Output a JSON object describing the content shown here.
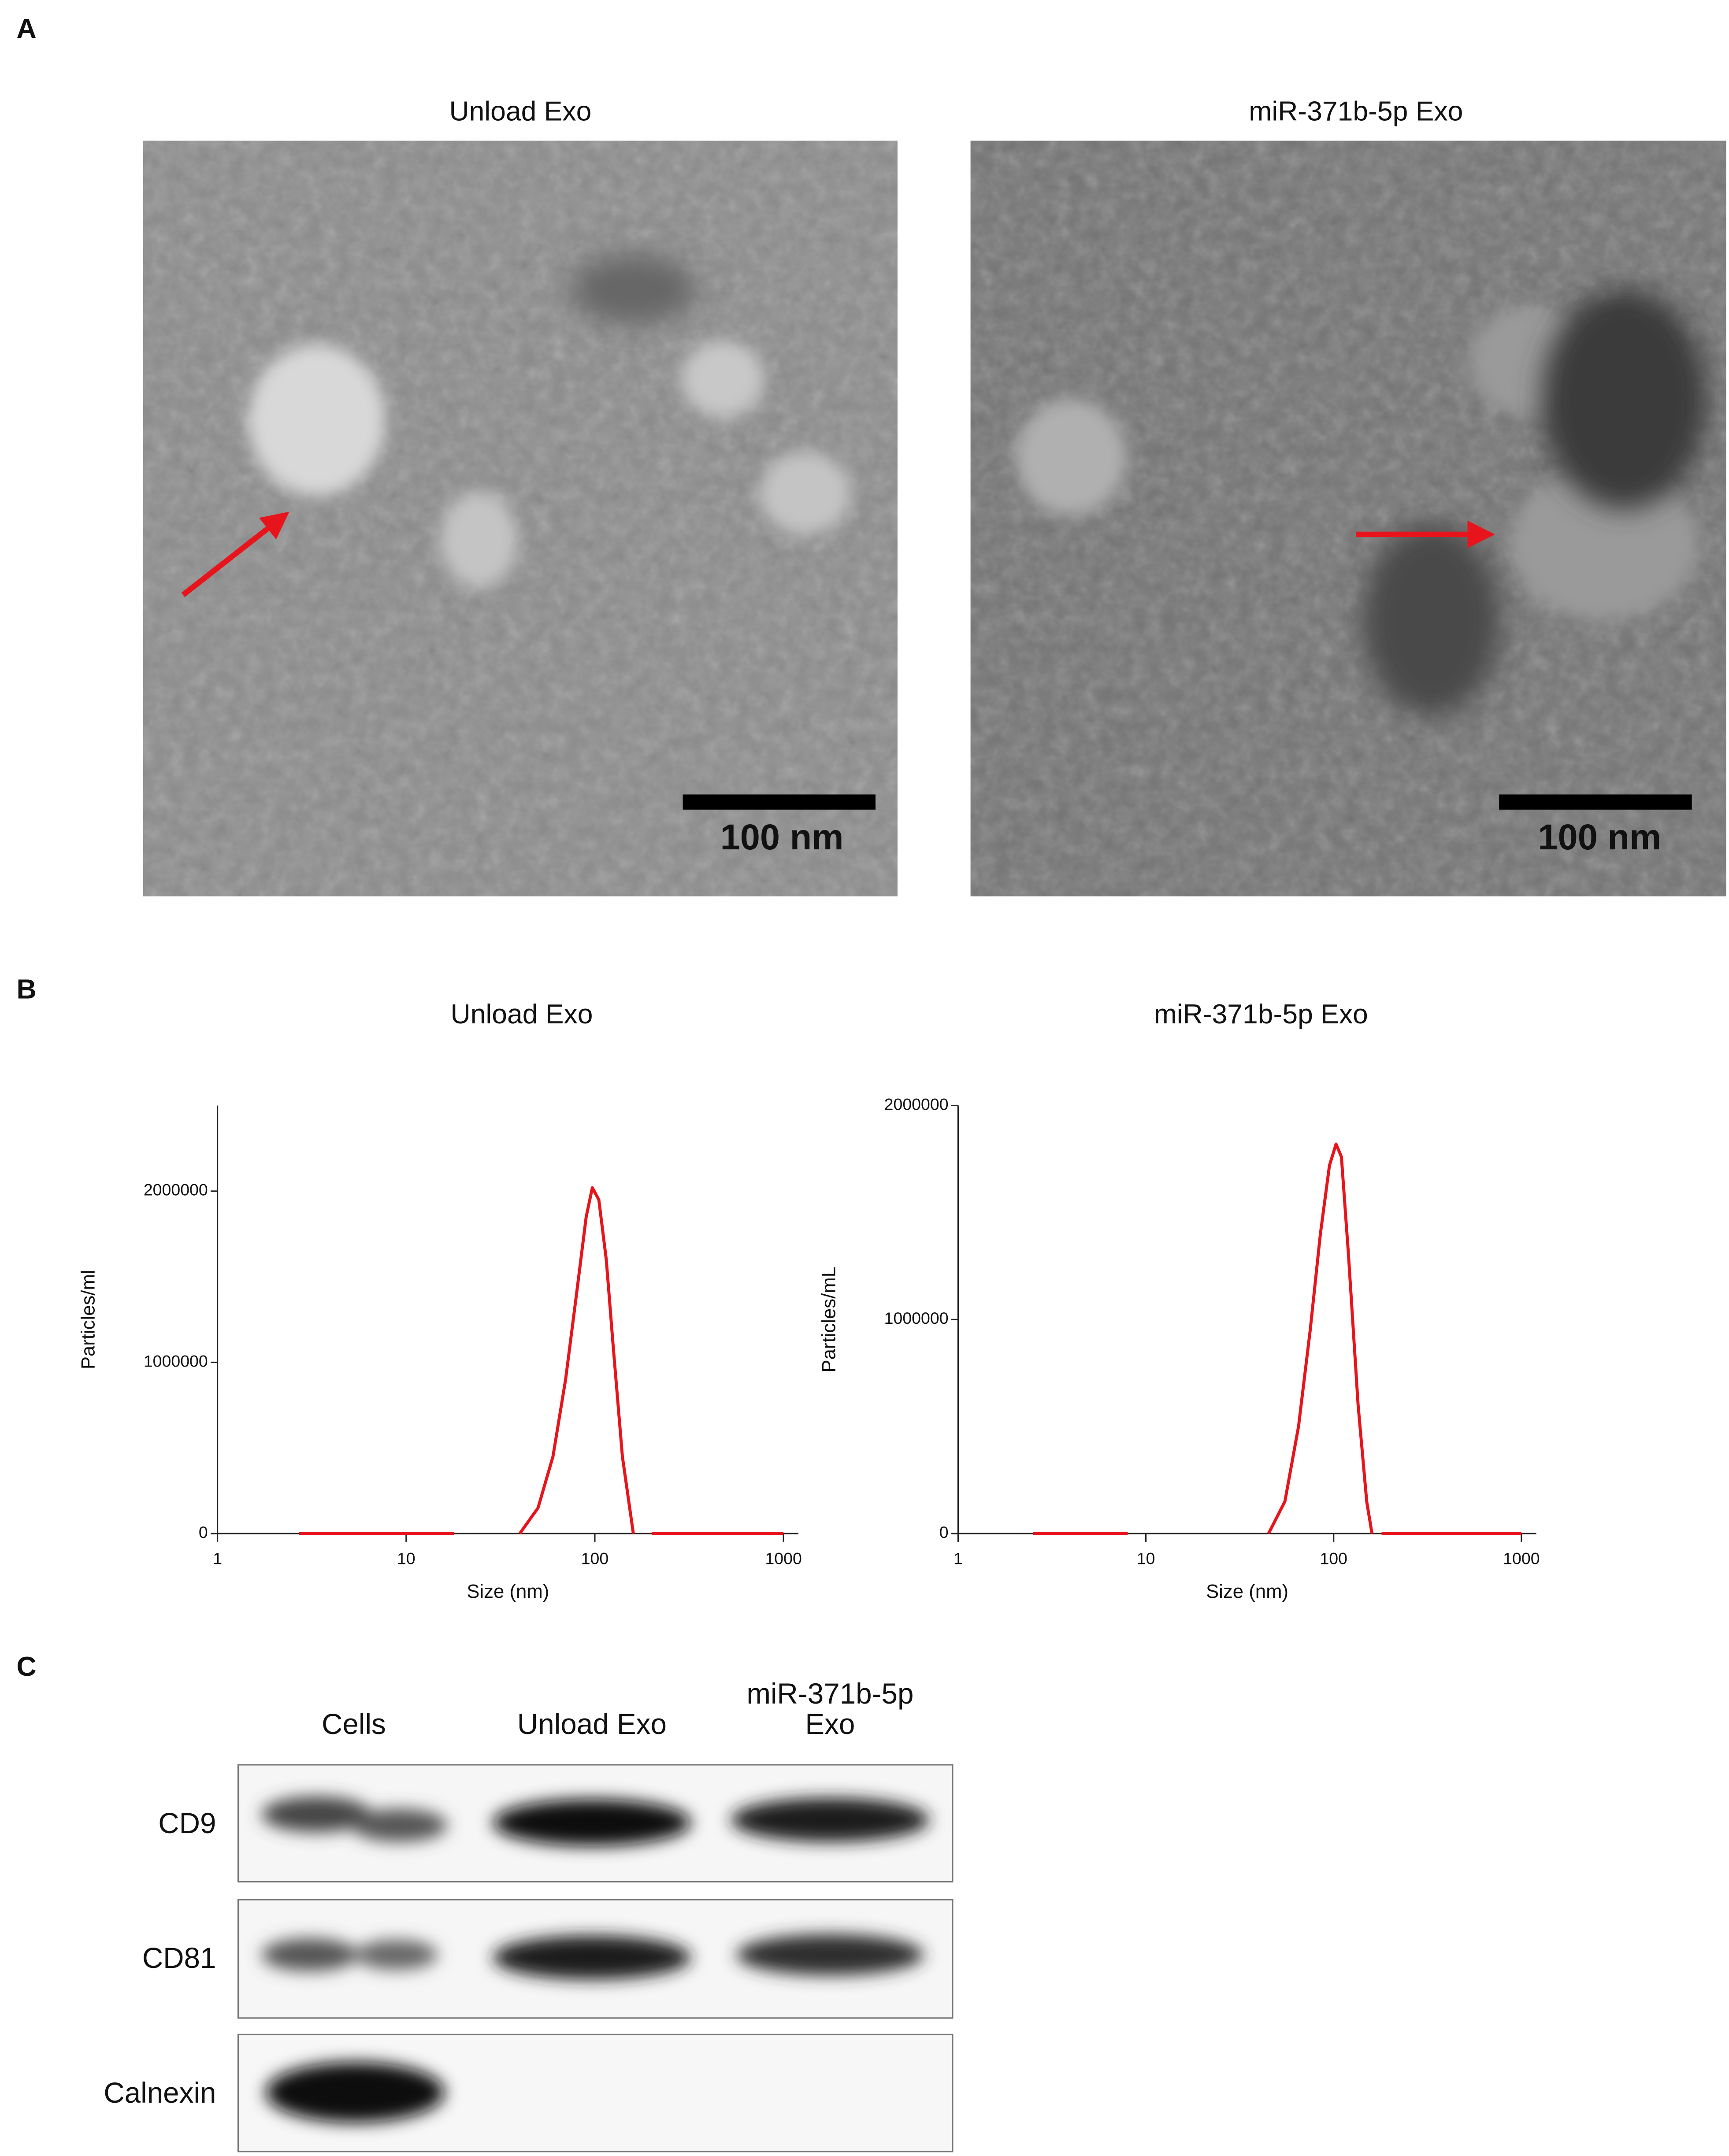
{
  "panel_labels": [
    "A",
    "B",
    "C"
  ],
  "tem": {
    "images": [
      {
        "title": "Unload Exo",
        "scale_bar": "100 nm"
      },
      {
        "title": "miR-371b-5p Exo",
        "scale_bar": "100 nm"
      }
    ]
  },
  "chart_data": [
    {
      "type": "line",
      "title": "Unload Exo",
      "x_label": "Size (nm)",
      "y_label": "Particles/ml",
      "log_x": true,
      "xlim": [
        1,
        1200
      ],
      "xticks": [
        1,
        10,
        100,
        1000
      ],
      "ylim": [
        0,
        2500000
      ],
      "yticks": [
        0,
        1000000,
        2000000
      ],
      "color": "#e8141b",
      "x": [
        2.7,
        5,
        10,
        18,
        28,
        40,
        50,
        60,
        70,
        80,
        90,
        97,
        105,
        115,
        125,
        140,
        160,
        180,
        200,
        400,
        1000
      ],
      "values": [
        0,
        0,
        0,
        0,
        null,
        0,
        150000,
        450000,
        900000,
        1400000,
        1850000,
        2020000,
        1950000,
        1600000,
        1100000,
        450000,
        0,
        null,
        0,
        0,
        0
      ]
    },
    {
      "type": "line",
      "title": "miR-371b-5p Exo",
      "x_label": "Size (nm)",
      "y_label": "Particles/mL",
      "log_x": true,
      "xlim": [
        1,
        1200
      ],
      "xticks": [
        1,
        10,
        100,
        1000
      ],
      "ylim": [
        0,
        2000000
      ],
      "yticks": [
        0,
        1000000,
        2000000
      ],
      "color": "#e8141b",
      "x": [
        2.5,
        5,
        8,
        20,
        45,
        55,
        65,
        75,
        85,
        95,
        103,
        110,
        120,
        135,
        150,
        160,
        170,
        180,
        400,
        1000
      ],
      "values": [
        0,
        0,
        0,
        null,
        0,
        150000,
        500000,
        950000,
        1400000,
        1720000,
        1820000,
        1760000,
        1300000,
        600000,
        150000,
        0,
        null,
        0,
        0,
        0
      ]
    }
  ],
  "western_blot": {
    "lanes": [
      [
        "Cells"
      ],
      [
        "Unload Exo"
      ],
      [
        "miR-371b-5p",
        "Exo"
      ]
    ],
    "proteins": [
      "CD9",
      "CD81",
      "Calnexin"
    ]
  }
}
